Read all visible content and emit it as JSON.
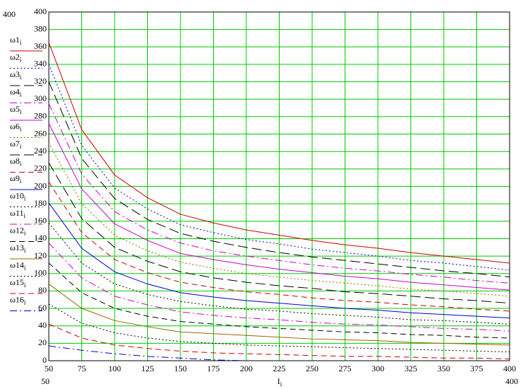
{
  "chart_data": {
    "type": "line",
    "xlabel": "I",
    "subscript": "i",
    "xlim": [
      50,
      400
    ],
    "ylim": [
      0,
      400
    ],
    "xticks": [
      50,
      75,
      100,
      125,
      150,
      175,
      200,
      225,
      250,
      275,
      300,
      325,
      350,
      375,
      400
    ],
    "yticks": [
      0,
      20,
      40,
      60,
      80,
      100,
      120,
      140,
      160,
      180,
      200,
      220,
      240,
      260,
      280,
      300,
      320,
      340,
      360,
      380,
      400
    ],
    "grid": true,
    "grid_color": "#00c800",
    "x": [
      50,
      75,
      100,
      125,
      150,
      175,
      200,
      225,
      250,
      275,
      300,
      325,
      350,
      375,
      400
    ],
    "series": [
      {
        "name": "ω1",
        "color": "#cc0000",
        "dash": "solid",
        "values": [
          365,
          265,
          213,
          187,
          168,
          158,
          150,
          144,
          138,
          133,
          129,
          124,
          120,
          116,
          112
        ]
      },
      {
        "name": "ω2",
        "color": "#0000cc",
        "dash": "dot",
        "values": [
          340,
          247,
          198,
          174,
          156,
          147,
          139,
          134,
          128,
          124,
          120,
          115,
          112,
          108,
          104
        ]
      },
      {
        "name": "ω3",
        "color": "#000000",
        "dash": "longdash",
        "values": [
          320,
          232,
          186,
          162,
          146,
          137,
          130,
          124,
          119,
          115,
          111,
          107,
          103,
          100,
          96
        ]
      },
      {
        "name": "ω4",
        "color": "#cc00cc",
        "dash": "dashdot",
        "values": [
          295,
          214,
          171,
          150,
          135,
          126,
          120,
          115,
          110,
          106,
          103,
          99,
          96,
          92,
          89
        ]
      },
      {
        "name": "ω5",
        "color": "#cc00cc",
        "dash": "solid",
        "values": [
          272,
          197,
          157,
          138,
          123,
          116,
          110,
          105,
          101,
          97,
          94,
          90,
          87,
          84,
          81
        ]
      },
      {
        "name": "ω6",
        "color": "#996600",
        "dash": "dot",
        "values": [
          250,
          180,
          144,
          126,
          113,
          106,
          100,
          96,
          92,
          89,
          86,
          82,
          80,
          77,
          74
        ]
      },
      {
        "name": "ω7",
        "color": "#000000",
        "dash": "longdash",
        "values": [
          227,
          163,
          130,
          114,
          102,
          95,
          90,
          86,
          83,
          79,
          77,
          74,
          71,
          69,
          66
        ]
      },
      {
        "name": "ω8",
        "color": "#cc0000",
        "dash": "dash",
        "values": [
          205,
          147,
          116,
          101,
          90,
          84,
          79,
          76,
          72,
          69,
          67,
          64,
          62,
          59,
          57
        ]
      },
      {
        "name": "ω9",
        "color": "#0000cc",
        "dash": "solid",
        "values": [
          181,
          129,
          102,
          88,
          78,
          73,
          69,
          66,
          63,
          60,
          58,
          55,
          53,
          51,
          49
        ]
      },
      {
        "name": "ω10",
        "color": "#000000",
        "dash": "dot",
        "values": [
          158,
          112,
          88,
          76,
          68,
          63,
          59,
          57,
          54,
          52,
          50,
          47,
          46,
          44,
          42
        ]
      },
      {
        "name": "ω11",
        "color": "#cc00cc",
        "dash": "dashdot",
        "values": [
          135,
          95,
          74,
          64,
          56,
          52,
          49,
          47,
          44,
          42,
          41,
          39,
          37,
          36,
          34
        ]
      },
      {
        "name": "ω12",
        "color": "#000000",
        "dash": "dash",
        "values": [
          112,
          78,
          60,
          51,
          45,
          42,
          39,
          37,
          35,
          33,
          32,
          30,
          29,
          27,
          26
        ]
      },
      {
        "name": "ω13",
        "color": "#996600",
        "dash": "solid",
        "values": [
          88,
          60,
          46,
          39,
          33,
          31,
          29,
          27,
          25,
          24,
          23,
          21,
          20,
          19,
          18
        ]
      },
      {
        "name": "ω14",
        "color": "#000000",
        "dash": "dot",
        "values": [
          65,
          43,
          32,
          26,
          22,
          20,
          18,
          17,
          16,
          15,
          14,
          13,
          12,
          11,
          10
        ]
      },
      {
        "name": "ω15",
        "color": "#cc0000",
        "dash": "dash",
        "values": [
          42,
          26,
          18,
          14,
          11,
          9,
          8,
          7,
          6,
          5,
          5,
          4,
          3,
          3,
          2
        ]
      },
      {
        "name": "ω16",
        "color": "#0000cc",
        "dash": "dashdot",
        "values": [
          17,
          12,
          8,
          5,
          3,
          1,
          0,
          null,
          null,
          null,
          null,
          null,
          null,
          null,
          null
        ]
      }
    ]
  }
}
